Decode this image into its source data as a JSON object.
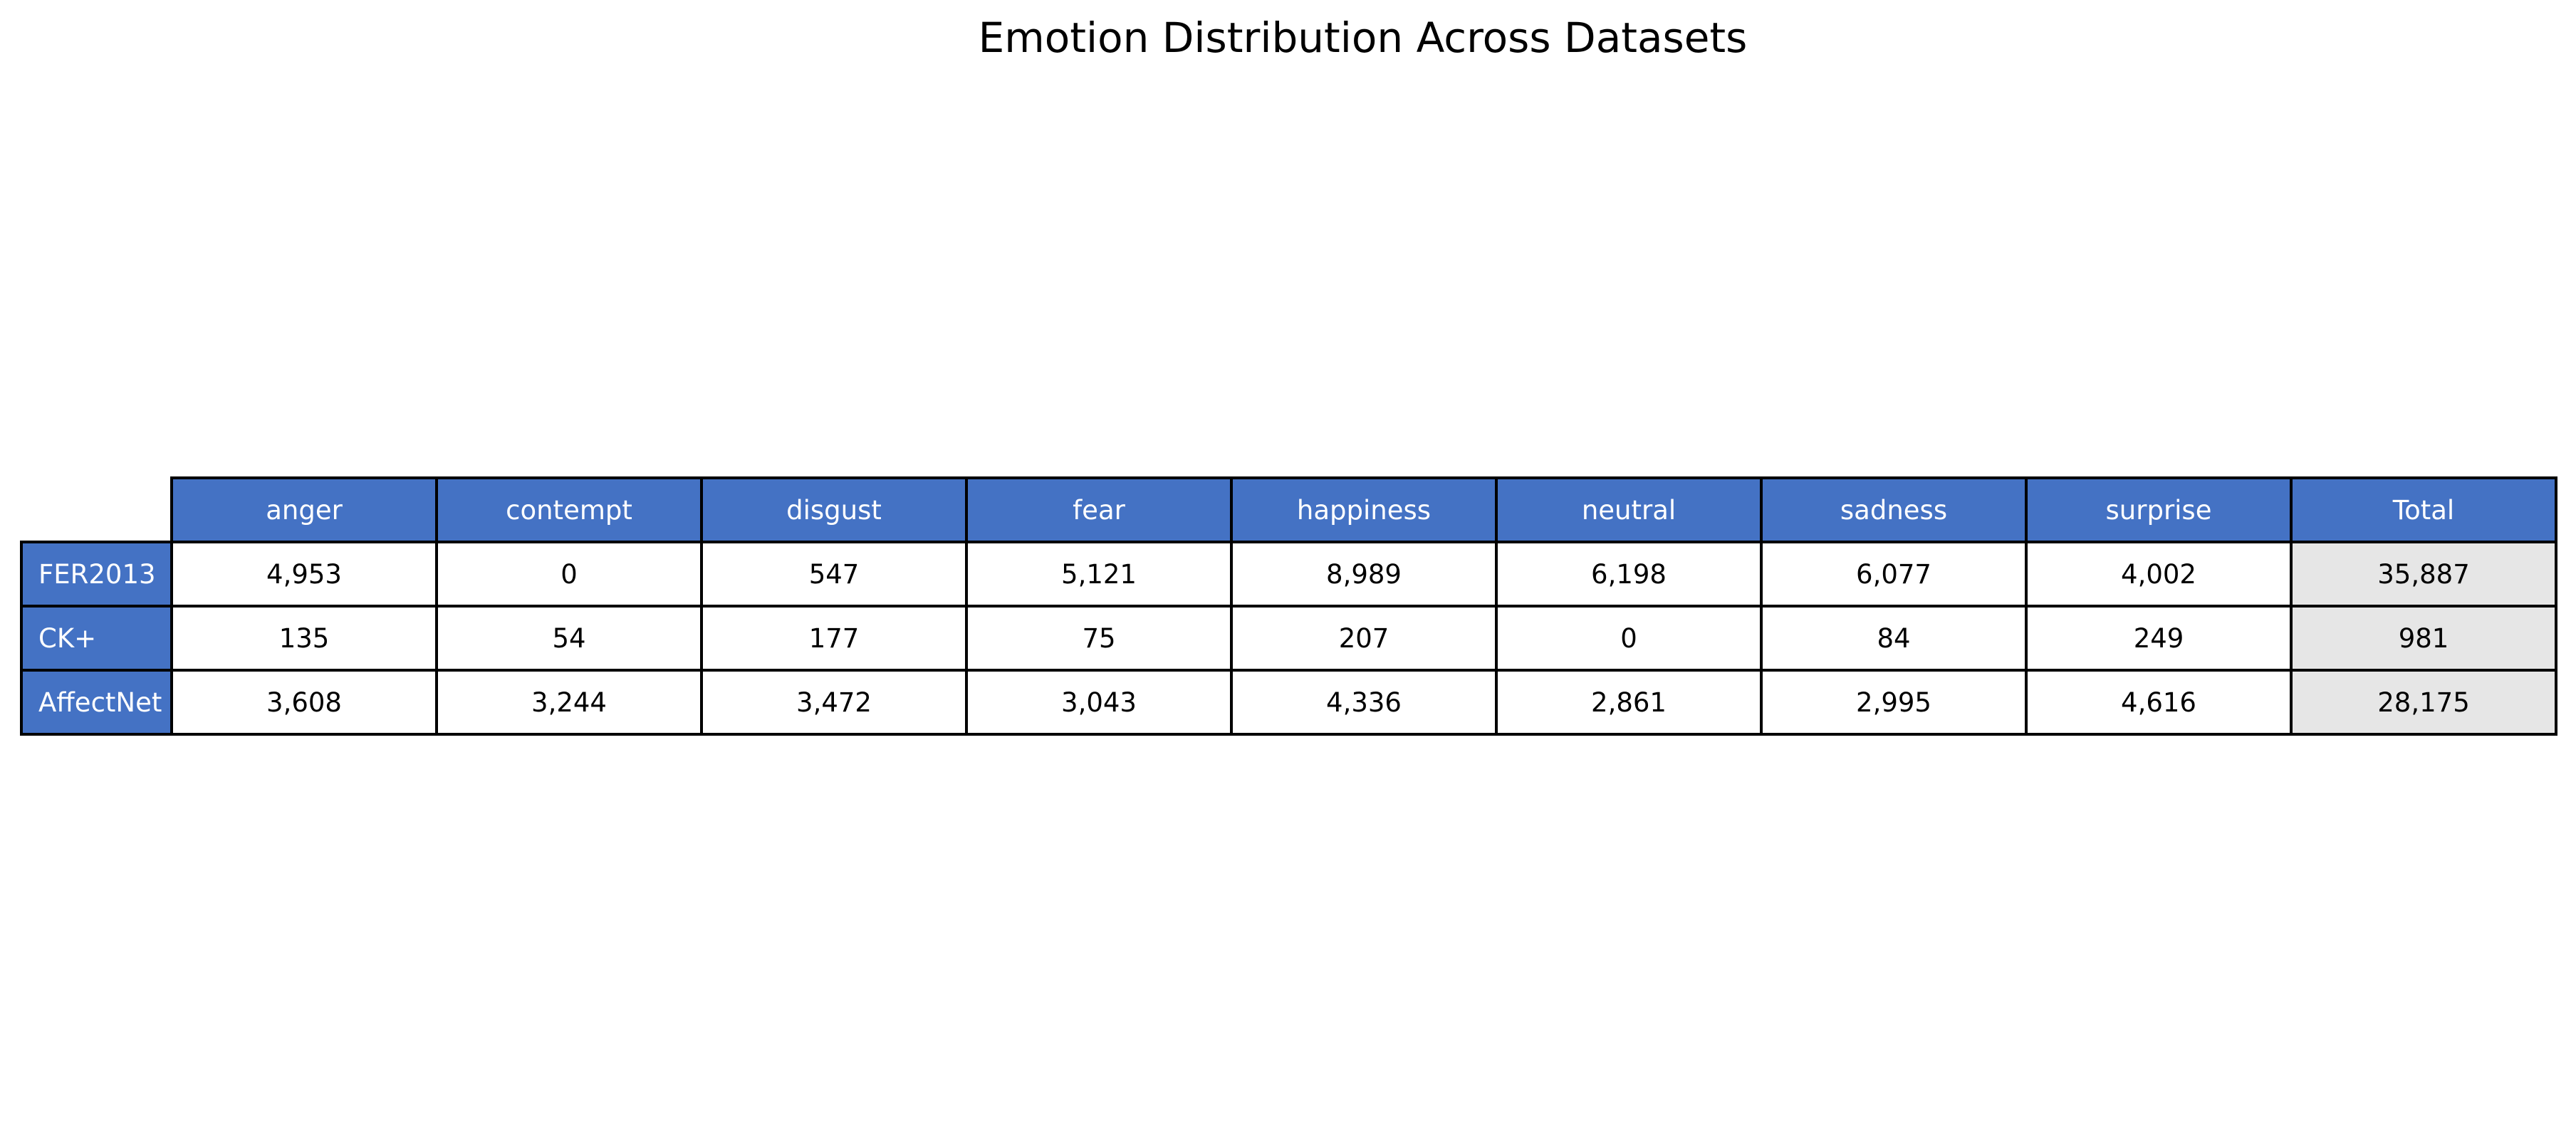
{
  "chart_data": {
    "type": "table",
    "title": "Emotion Distribution Across Datasets",
    "columns": [
      "anger",
      "contempt",
      "disgust",
      "fear",
      "happiness",
      "neutral",
      "sadness",
      "surprise",
      "Total"
    ],
    "rows": [
      {
        "label": "FER2013",
        "values": [
          "4,953",
          "0",
          "547",
          "5,121",
          "8,989",
          "6,198",
          "6,077",
          "4,002",
          "35,887"
        ]
      },
      {
        "label": "CK+",
        "values": [
          "135",
          "54",
          "177",
          "75",
          "207",
          "0",
          "84",
          "249",
          "981"
        ]
      },
      {
        "label": "AffectNet",
        "values": [
          "3,608",
          "3,244",
          "3,472",
          "3,043",
          "4,336",
          "2,861",
          "2,995",
          "4,616",
          "28,175"
        ]
      }
    ]
  },
  "colors": {
    "header_fill": "#4472c4",
    "header_text": "#ffffff",
    "total_fill": "#e6e6e6",
    "border": "#000000"
  }
}
